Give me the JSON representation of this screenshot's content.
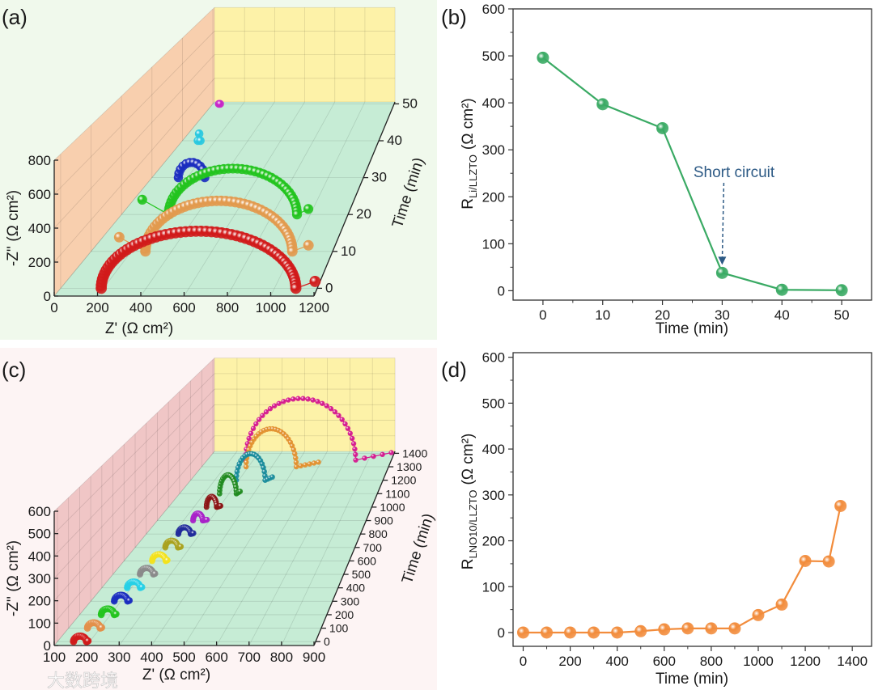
{
  "panels": {
    "a": {
      "label": "(a)"
    },
    "b": {
      "label": "(b)"
    },
    "c": {
      "label": "(c)"
    },
    "d": {
      "label": "(d)"
    }
  },
  "watermark": "大数跨境",
  "colors": {
    "panel_a_bg": "#f0f9ec",
    "panel_c_bg": "#fdf4f4",
    "wall_a": "#f8cfae",
    "wall_c": "#f0c6c6",
    "floor": "#c6ecd5",
    "back_wall": "#fdf2a8",
    "line_b": "#3aaa64",
    "line_d": "#f28c3c",
    "annotation": "#2d5a85"
  },
  "chart_data": [
    {
      "id": "a",
      "type": "scatter3d",
      "xlabel": "Z' (Ω cm²)",
      "ylabel": "-Z'' (Ω cm²)",
      "zlabel": "Time (min)",
      "xlim": [
        0,
        1200
      ],
      "ylim": [
        0,
        800
      ],
      "tlim": [
        0,
        50
      ],
      "xticks": [
        0,
        200,
        400,
        600,
        800,
        1000,
        1200
      ],
      "yticks": [
        0,
        200,
        400,
        600,
        800
      ],
      "tticks": [
        0,
        10,
        20,
        30,
        40,
        50
      ],
      "series": [
        {
          "time": 0,
          "color": "#d11a1a",
          "start": 190,
          "end": 1100,
          "peak": 340,
          "tail": 1190,
          "n": 60
        },
        {
          "time": 10,
          "color": "#e29a4e",
          "start": 270,
          "end": 1000,
          "peak": 320,
          "tail": 1080,
          "n": 50,
          "lead": [
            140,
            90
          ]
        },
        {
          "time": 20,
          "color": "#22c41e",
          "start": 250,
          "end": 930,
          "peak": 310,
          "tail": 990,
          "n": 45,
          "lead": [
            110,
            100
          ]
        },
        {
          "time": 30,
          "color": "#1a2dbf",
          "start": 150,
          "end": 300,
          "peak": 110,
          "tail": 300,
          "n": 12
        },
        {
          "time": 40,
          "color": "#27c8e0",
          "start": 95,
          "end": 110,
          "peak": 55,
          "tail": 110,
          "n": 3
        },
        {
          "time": 50,
          "color": "#c825c8",
          "start": 40,
          "end": 48,
          "peak": 5,
          "tail": 48,
          "n": 2
        }
      ]
    },
    {
      "id": "b",
      "type": "line",
      "x": [
        0,
        10,
        20,
        30,
        40,
        50
      ],
      "y": [
        496,
        397,
        346,
        38,
        2,
        1
      ],
      "xlabel": "Time (min)",
      "ylabel": {
        "main": "R",
        "sub": "Li/LLZTO",
        "unit": "(Ω cm²)"
      },
      "xlim": [
        -5,
        55
      ],
      "ylim": [
        -20,
        600
      ],
      "xticks": [
        0,
        10,
        20,
        30,
        40,
        50
      ],
      "yticks": [
        0,
        100,
        200,
        300,
        400,
        500,
        600
      ],
      "annotation": {
        "text": "Short circuit",
        "x": 30,
        "y": 38
      }
    },
    {
      "id": "c",
      "type": "scatter3d",
      "xlabel": "Z' (Ω cm²)",
      "ylabel": "-Z'' (Ω cm²)",
      "zlabel": "Time (min)",
      "xlim": [
        100,
        900
      ],
      "ylim": [
        0,
        600
      ],
      "tlim": [
        0,
        1400
      ],
      "xticks": [
        100,
        200,
        300,
        400,
        500,
        600,
        700,
        800,
        900
      ],
      "yticks": [
        0,
        100,
        200,
        300,
        400,
        500,
        600
      ],
      "tticks": [
        0,
        100,
        200,
        300,
        400,
        500,
        600,
        700,
        800,
        900,
        1000,
        1100,
        1200,
        1300,
        1400
      ],
      "series": [
        {
          "time": 0,
          "color": "#d11a1a",
          "start": 150,
          "end": 190,
          "peak": 25,
          "tail": 195,
          "n": 14
        },
        {
          "time": 100,
          "color": "#e2904a",
          "start": 160,
          "end": 200,
          "peak": 25,
          "tail": 205,
          "n": 14
        },
        {
          "time": 200,
          "color": "#22c41e",
          "start": 170,
          "end": 212,
          "peak": 28,
          "tail": 218,
          "n": 14
        },
        {
          "time": 300,
          "color": "#1a2dbf",
          "start": 178,
          "end": 222,
          "peak": 30,
          "tail": 228,
          "n": 14
        },
        {
          "time": 400,
          "color": "#27d0e6",
          "start": 186,
          "end": 230,
          "peak": 30,
          "tail": 236,
          "n": 14
        },
        {
          "time": 500,
          "color": "#8a8a8a",
          "start": 194,
          "end": 240,
          "peak": 32,
          "tail": 246,
          "n": 14
        },
        {
          "time": 600,
          "color": "#f3e21c",
          "start": 200,
          "end": 248,
          "peak": 34,
          "tail": 254,
          "n": 14
        },
        {
          "time": 700,
          "color": "#a9a21f",
          "start": 210,
          "end": 256,
          "peak": 36,
          "tail": 266,
          "n": 14
        },
        {
          "time": 800,
          "color": "#1f2a9a",
          "start": 220,
          "end": 266,
          "peak": 36,
          "tail": 276,
          "n": 14
        },
        {
          "time": 900,
          "color": "#a822c8",
          "start": 237,
          "end": 274,
          "peak": 40,
          "tail": 290,
          "n": 14
        },
        {
          "time": 1000,
          "color": "#8a1414",
          "start": 250,
          "end": 290,
          "peak": 60,
          "tail": 305,
          "n": 14
        },
        {
          "time": 1100,
          "color": "#1f8a1f",
          "start": 262,
          "end": 330,
          "peak": 110,
          "tail": 345,
          "n": 18
        },
        {
          "time": 1200,
          "color": "#168a9a",
          "start": 290,
          "end": 410,
          "peak": 160,
          "tail": 440,
          "n": 20
        },
        {
          "time": 1300,
          "color": "#e2902e",
          "start": 290,
          "end": 505,
          "peak": 236,
          "tail": 600,
          "n": 28
        },
        {
          "time": 1350,
          "color": "#d4168e",
          "start": 266,
          "end": 745,
          "peak": 388,
          "tail": 900,
          "n": 36
        }
      ]
    },
    {
      "id": "d",
      "type": "line",
      "x": [
        0,
        100,
        200,
        300,
        400,
        500,
        600,
        700,
        800,
        900,
        1000,
        1100,
        1200,
        1300,
        1350
      ],
      "y": [
        0,
        0,
        0,
        0,
        0,
        3,
        7,
        9,
        9,
        9,
        38,
        61,
        156,
        155,
        276
      ],
      "xlabel": "Time (min)",
      "ylabel": {
        "main": "R",
        "sub": "LNO10/LLZTO",
        "unit": "(Ω cm²)"
      },
      "xlim": [
        -43,
        1482
      ],
      "ylim": [
        -30,
        610
      ],
      "xticks": [
        0,
        200,
        400,
        600,
        800,
        1000,
        1200,
        1400
      ],
      "yticks": [
        0,
        100,
        200,
        300,
        400,
        500,
        600
      ]
    }
  ]
}
